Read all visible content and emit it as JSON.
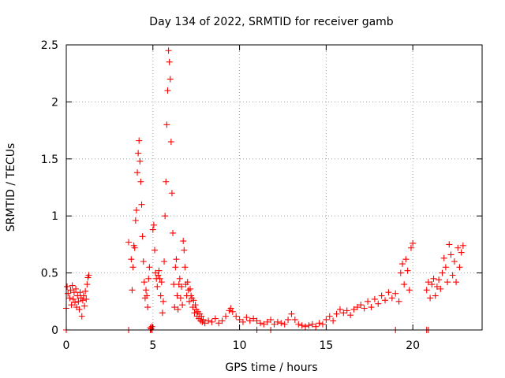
{
  "chart_data": {
    "type": "scatter",
    "title": "Day 134 of 2022, SRMTID for receiver gamb",
    "xlabel": "GPS time / hours",
    "ylabel": "SRMTID / TECUs",
    "xlim": [
      0,
      24
    ],
    "ylim": [
      0,
      2.5
    ],
    "x_ticks": [
      0,
      5,
      10,
      15,
      20
    ],
    "x_tick_labels": [
      "0",
      "5",
      "10",
      "15",
      "20"
    ],
    "y_ticks": [
      0,
      0.5,
      1,
      1.5,
      2,
      2.5
    ],
    "y_tick_labels": [
      "0",
      "0.5",
      "1",
      "1.5",
      "2",
      "2.5"
    ],
    "grid": true,
    "marker": "+",
    "marker_color": "#ff0000",
    "series": [
      {
        "name": "SRMTID",
        "x": [
          0.0,
          0.05,
          0.1,
          0.2,
          0.25,
          0.3,
          0.35,
          0.4,
          0.45,
          0.5,
          0.55,
          0.6,
          0.65,
          0.7,
          0.75,
          0.8,
          0.85,
          0.9,
          0.95,
          1.0,
          1.05,
          1.1,
          1.15,
          1.2,
          1.25,
          1.3,
          3.6,
          3.75,
          3.8,
          3.85,
          3.9,
          3.95,
          4.0,
          4.05,
          4.1,
          4.15,
          4.2,
          4.25,
          4.3,
          4.35,
          4.4,
          4.45,
          4.5,
          4.55,
          4.6,
          4.65,
          4.7,
          4.75,
          4.8,
          4.85,
          4.9,
          4.95,
          5.0,
          5.05,
          5.1,
          5.15,
          5.2,
          5.25,
          5.3,
          5.35,
          5.4,
          5.45,
          5.5,
          5.55,
          5.6,
          5.65,
          5.7,
          5.75,
          5.8,
          5.85,
          5.9,
          5.95,
          6.0,
          6.05,
          6.1,
          6.15,
          6.2,
          6.25,
          6.3,
          6.35,
          6.4,
          6.45,
          6.5,
          6.55,
          6.6,
          6.65,
          6.7,
          6.75,
          6.8,
          6.85,
          6.9,
          6.95,
          7.0,
          7.05,
          7.1,
          7.15,
          7.2,
          7.25,
          7.3,
          7.35,
          7.4,
          7.45,
          7.5,
          7.55,
          7.6,
          7.65,
          7.7,
          7.75,
          7.8,
          7.85,
          7.9,
          8.0,
          8.2,
          8.4,
          8.6,
          8.8,
          9.0,
          9.2,
          9.4,
          9.5,
          9.6,
          9.8,
          10.0,
          10.2,
          10.4,
          10.6,
          10.8,
          11.0,
          11.2,
          11.4,
          11.6,
          11.8,
          12.0,
          12.2,
          12.4,
          12.6,
          12.8,
          13.0,
          13.2,
          13.4,
          13.6,
          13.8,
          14.0,
          14.2,
          14.4,
          14.6,
          14.8,
          15.0,
          15.2,
          15.4,
          15.6,
          15.8,
          16.0,
          16.2,
          16.4,
          16.6,
          16.8,
          17.0,
          17.2,
          17.4,
          17.6,
          17.8,
          18.0,
          18.2,
          18.4,
          18.6,
          18.8,
          19.0,
          19.2,
          19.3,
          19.4,
          19.5,
          19.6,
          19.7,
          19.8,
          19.9,
          20.0,
          20.8,
          20.9,
          21.0,
          21.1,
          21.2,
          21.3,
          21.4,
          21.5,
          21.6,
          21.7,
          21.8,
          21.9,
          22.0,
          22.1,
          22.2,
          22.3,
          22.4,
          22.5,
          22.6,
          22.7,
          22.8,
          22.9,
          0.0,
          3.6,
          4.85,
          4.95,
          11.0,
          11.8,
          19.0,
          20.8,
          20.9
        ],
        "y": [
          0.19,
          0.38,
          0.32,
          0.28,
          0.35,
          0.22,
          0.39,
          0.27,
          0.33,
          0.24,
          0.36,
          0.2,
          0.3,
          0.25,
          0.18,
          0.33,
          0.28,
          0.12,
          0.26,
          0.3,
          0.21,
          0.34,
          0.27,
          0.4,
          0.46,
          0.48,
          0.77,
          0.62,
          0.35,
          0.55,
          0.74,
          0.72,
          0.96,
          1.05,
          1.38,
          1.55,
          1.66,
          1.48,
          1.3,
          1.1,
          0.82,
          0.6,
          0.42,
          0.28,
          0.35,
          0.3,
          0.2,
          0.45,
          0.55,
          0.02,
          0.01,
          0.03,
          0.88,
          0.92,
          0.7,
          0.5,
          0.45,
          0.38,
          0.48,
          0.52,
          0.45,
          0.3,
          0.42,
          0.15,
          0.25,
          0.6,
          1.0,
          1.3,
          1.8,
          2.1,
          2.45,
          2.35,
          2.2,
          1.65,
          1.2,
          0.85,
          0.4,
          0.2,
          0.55,
          0.62,
          0.3,
          0.18,
          0.4,
          0.45,
          0.28,
          0.38,
          0.22,
          0.78,
          0.7,
          0.55,
          0.4,
          0.3,
          0.42,
          0.35,
          0.25,
          0.36,
          0.3,
          0.28,
          0.2,
          0.26,
          0.15,
          0.22,
          0.18,
          0.12,
          0.16,
          0.1,
          0.14,
          0.08,
          0.12,
          0.07,
          0.09,
          0.06,
          0.08,
          0.07,
          0.1,
          0.06,
          0.08,
          0.12,
          0.17,
          0.19,
          0.16,
          0.12,
          0.09,
          0.07,
          0.11,
          0.08,
          0.1,
          0.08,
          0.06,
          0.05,
          0.07,
          0.09,
          0.05,
          0.07,
          0.06,
          0.05,
          0.09,
          0.14,
          0.09,
          0.05,
          0.04,
          0.03,
          0.04,
          0.05,
          0.03,
          0.06,
          0.05,
          0.09,
          0.12,
          0.08,
          0.14,
          0.18,
          0.15,
          0.17,
          0.13,
          0.18,
          0.2,
          0.22,
          0.19,
          0.25,
          0.2,
          0.27,
          0.23,
          0.3,
          0.26,
          0.33,
          0.28,
          0.32,
          0.25,
          0.5,
          0.58,
          0.4,
          0.62,
          0.52,
          0.35,
          0.72,
          0.76,
          0.35,
          0.42,
          0.28,
          0.4,
          0.45,
          0.3,
          0.38,
          0.44,
          0.36,
          0.5,
          0.63,
          0.55,
          0.42,
          0.75,
          0.66,
          0.48,
          0.6,
          0.42,
          0.72,
          0.55,
          0.68,
          0.74,
          0.0,
          0.0,
          0.0,
          0.0,
          0.0,
          0.0,
          0.0,
          0.0,
          0.0
        ]
      }
    ]
  }
}
